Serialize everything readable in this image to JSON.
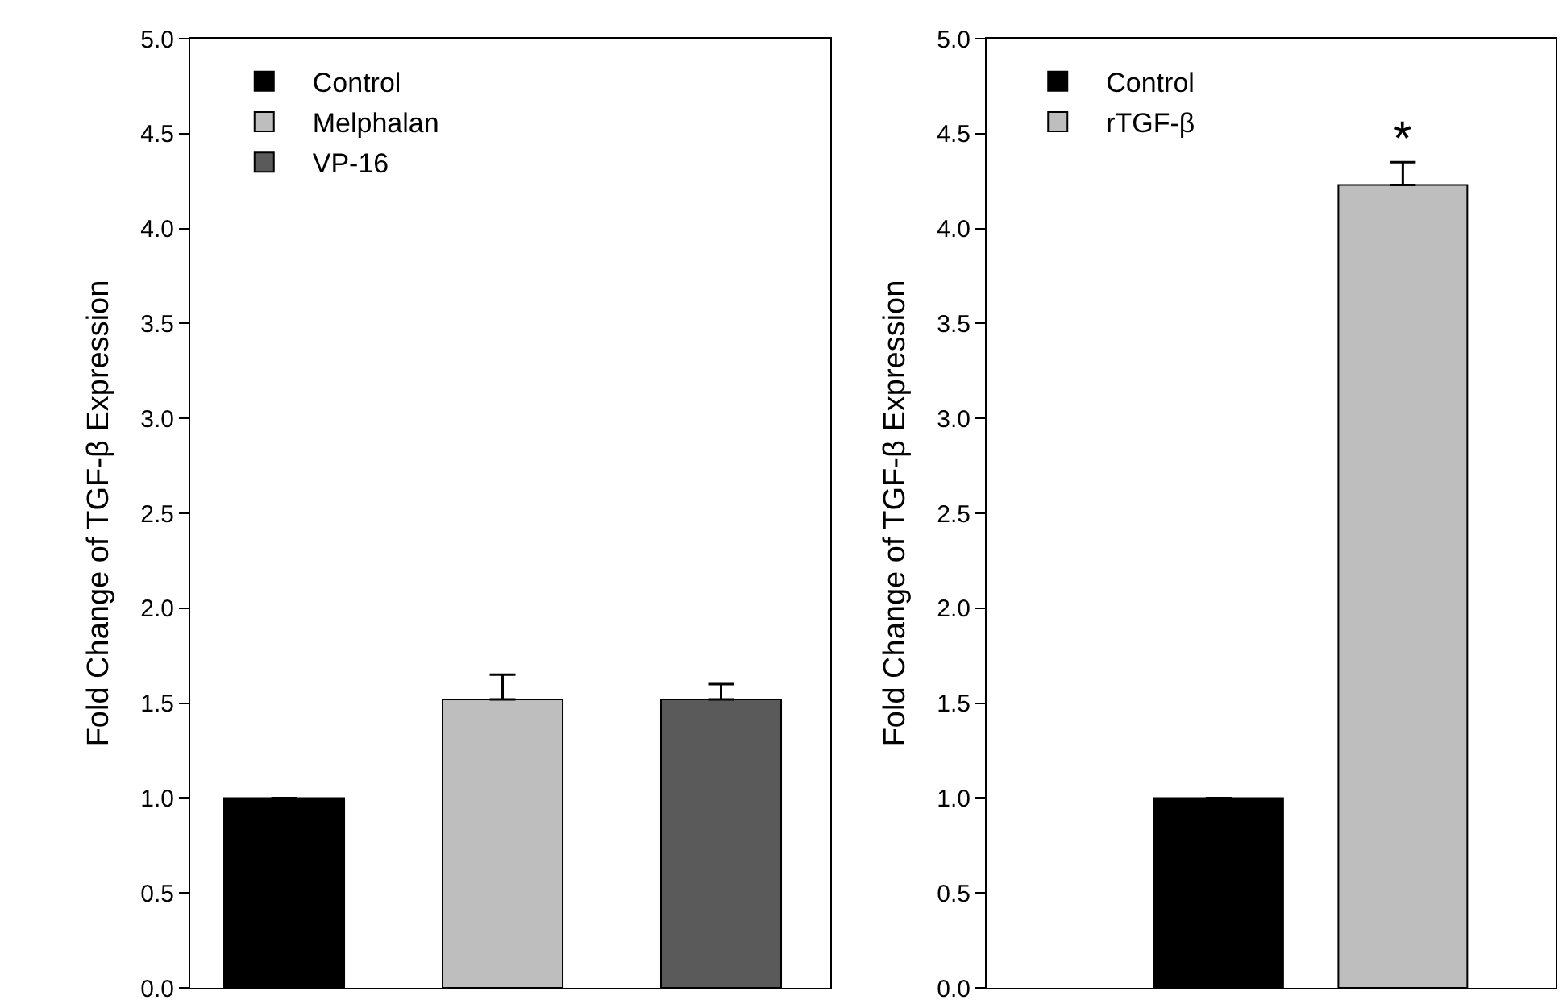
{
  "chart_data": [
    {
      "type": "bar",
      "ylabel": "Fold Change of TGF-β Expression",
      "categories": [
        null,
        null,
        null
      ],
      "series": [
        {
          "name": "Control",
          "color": "#000000",
          "values": [
            1.0,
            null,
            null
          ],
          "errors": [
            null,
            null,
            null
          ]
        },
        {
          "name": "Melphalan",
          "color": "#bebebe",
          "values": [
            null,
            1.52,
            null
          ],
          "errors": [
            null,
            [
              1.52,
              1.65
            ],
            null
          ]
        },
        {
          "name": "VP-16",
          "color": "#5a5a5a",
          "values": [
            null,
            null,
            1.52
          ],
          "errors": [
            null,
            null,
            [
              1.52,
              1.6
            ]
          ]
        }
      ],
      "ylim": [
        0,
        5
      ],
      "yticks": [
        {
          "value": 0,
          "label": "0.0"
        },
        0.5,
        {
          "value": 1,
          "label": "1.0"
        },
        1.5,
        {
          "value": 2,
          "label": "2.0"
        },
        2.5,
        {
          "value": 3,
          "label": "3.0"
        },
        3.5,
        {
          "value": 4,
          "label": "4.0"
        },
        4.5,
        {
          "value": 5,
          "label": "5.0"
        }
      ],
      "tick_labels": "y",
      "grid": false,
      "legend": "top left"
    },
    {
      "type": "bar",
      "ylabel": "Fold Change of TGF-β Expression",
      "categories": [
        null,
        null
      ],
      "series": [
        {
          "name": "Control",
          "color": "#000000",
          "values": [
            1.0,
            null
          ],
          "errors": [
            null,
            null
          ]
        },
        {
          "name": "rTGF-β",
          "color": "#bebebe",
          "values": [
            null,
            4.23
          ],
          "errors": [
            null,
            [
              4.23,
              4.35
            ]
          ]
        }
      ],
      "ylim": [
        0,
        5
      ],
      "yticks": [
        {
          "value": 0,
          "label": "0.0"
        },
        0.5,
        {
          "value": 1,
          "label": "1.0"
        },
        1.5,
        {
          "value": 2,
          "label": "2.0"
        },
        2.5,
        {
          "value": 3,
          "label": "3.0"
        },
        3.5,
        {
          "value": 4,
          "label": "4.0"
        },
        4.5,
        {
          "value": 5,
          "label": "5.0"
        }
      ],
      "annotations": [
        "*"
      ],
      "tick_labels": "y",
      "grid": false,
      "legend": "top left"
    }
  ]
}
